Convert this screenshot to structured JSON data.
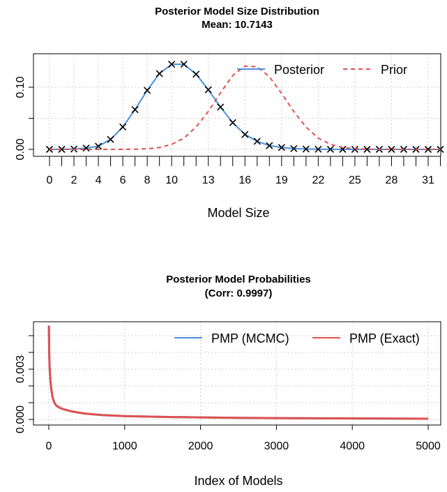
{
  "chart_data": [
    {
      "type": "line",
      "title": "Posterior Model Size Distribution",
      "subtitle": "Mean: 10.7143",
      "xlabel": "Model Size",
      "ylabel": "",
      "xlim": [
        0,
        32
      ],
      "ylim": [
        0,
        0.14
      ],
      "x_tick_labels": [
        0,
        2,
        4,
        6,
        8,
        10,
        13,
        16,
        19,
        22,
        25,
        28,
        31
      ],
      "y_tick_labels": [
        "0.00",
        "0.10"
      ],
      "y_ticks_unlabeled": [
        0.05
      ],
      "grid": true,
      "legend_position": "top-right",
      "x": [
        0,
        1,
        2,
        3,
        4,
        5,
        6,
        7,
        8,
        9,
        10,
        11,
        12,
        13,
        14,
        15,
        16,
        17,
        18,
        19,
        20,
        21,
        22,
        23,
        24,
        25,
        26,
        27,
        28,
        29,
        30,
        31,
        32
      ],
      "series": [
        {
          "name": "Posterior",
          "color": "#4a90d9",
          "style": "solid",
          "markers": "x",
          "values": [
            0.0,
            0.0,
            0.0005,
            0.002,
            0.005,
            0.016,
            0.036,
            0.064,
            0.095,
            0.122,
            0.137,
            0.137,
            0.121,
            0.096,
            0.068,
            0.043,
            0.024,
            0.013,
            0.006,
            0.003,
            0.0012,
            0.0005,
            0.0002,
            0.0001,
            0.0,
            0.0,
            0.0,
            0.0,
            0.0,
            0.0,
            0.0,
            0.0,
            0.0
          ]
        },
        {
          "name": "Prior",
          "color": "#e05050",
          "style": "dashed",
          "values": [
            0.0,
            0.0,
            0.0,
            0.0,
            0.0,
            0.0,
            0.0,
            0.0003,
            0.001,
            0.003,
            0.008,
            0.018,
            0.036,
            0.061,
            0.091,
            0.119,
            0.134,
            0.133,
            0.117,
            0.09,
            0.061,
            0.036,
            0.018,
            0.008,
            0.003,
            0.001,
            0.0003,
            0.0,
            0.0,
            0.0,
            0.0,
            0.0,
            0.0
          ]
        }
      ]
    },
    {
      "type": "line",
      "title": "Posterior Model Probabilities",
      "subtitle": "(Corr: 0.9997)",
      "xlabel": "Index of Models",
      "ylabel": "",
      "xlim": [
        0,
        5000
      ],
      "ylim": [
        0,
        0.006
      ],
      "x_tick_labels": [
        0,
        1000,
        2000,
        3000,
        4000,
        5000
      ],
      "y_tick_labels": [
        "0.000",
        "0.003"
      ],
      "grid": true,
      "legend_position": "top-right",
      "series": [
        {
          "name": "PMP (MCMC)",
          "color": "#4a90d9",
          "x": [
            1,
            5,
            10,
            20,
            30,
            50,
            75,
            100,
            150,
            200,
            300,
            400,
            500,
            700,
            1000,
            1500,
            2000,
            2500,
            3000,
            3500,
            4000,
            4500,
            5000
          ],
          "values": [
            0.0056,
            0.004,
            0.0032,
            0.0024,
            0.0019,
            0.0013,
            0.00098,
            0.00082,
            0.00068,
            0.0006,
            0.00048,
            0.0004,
            0.00034,
            0.00026,
            0.0002,
            0.00015,
            0.00012,
            9.5e-05,
            8e-05,
            7e-05,
            6e-05,
            5e-05,
            4e-05
          ]
        },
        {
          "name": "PMP (Exact)",
          "color": "#e05050",
          "x": [
            1,
            5,
            10,
            20,
            30,
            50,
            75,
            100,
            150,
            200,
            300,
            400,
            500,
            700,
            1000,
            1500,
            2000,
            2500,
            3000,
            3500,
            4000,
            4500,
            5000
          ],
          "values": [
            0.0056,
            0.004,
            0.0032,
            0.0024,
            0.0019,
            0.0013,
            0.00098,
            0.00082,
            0.00068,
            0.0006,
            0.00048,
            0.0004,
            0.00034,
            0.00026,
            0.0002,
            0.00015,
            0.00012,
            9.5e-05,
            8e-05,
            7e-05,
            6e-05,
            5e-05,
            4e-05
          ]
        }
      ]
    }
  ]
}
